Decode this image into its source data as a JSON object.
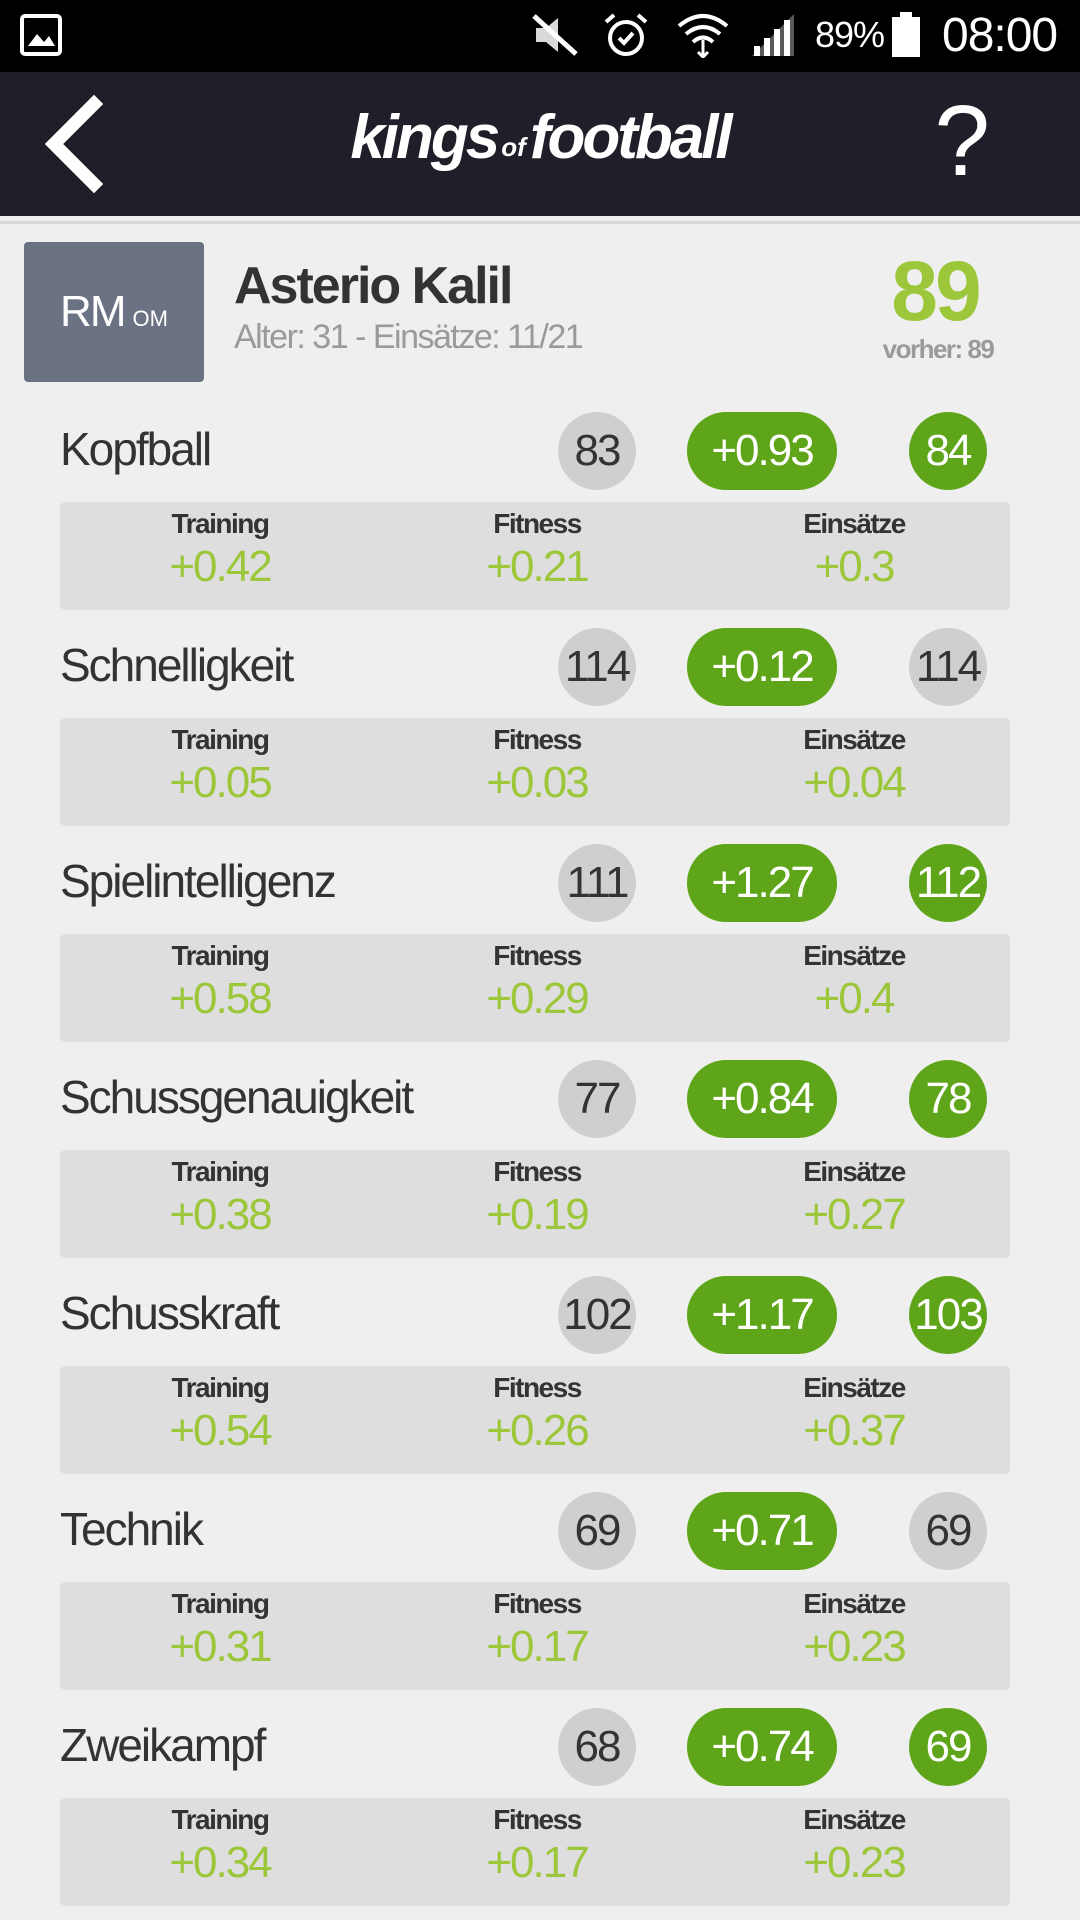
{
  "status_bar": {
    "battery_percent": "89%",
    "time": "08:00",
    "icons": [
      "gallery-icon",
      "mute-icon",
      "alarm-icon",
      "wifi-icon",
      "signal-icon",
      "battery-icon"
    ]
  },
  "app_bar": {
    "logo_part1": "kings",
    "logo_part2": "of",
    "logo_part3": "football",
    "help_label": "?"
  },
  "player": {
    "position": "RM",
    "position_secondary": "OM",
    "name": "Asterio Kalil",
    "meta": "Alter: 31 - Einsätze: 11/21",
    "rating": "89",
    "previous_rating": "vorher: 89"
  },
  "breakdown_labels": {
    "training": "Training",
    "fitness": "Fitness",
    "einsaetze": "Einsätze"
  },
  "stats": [
    {
      "label": "Kopfball",
      "old": "83",
      "delta": "+0.93",
      "new": "84",
      "changed": true,
      "training": "+0.42",
      "fitness": "+0.21",
      "einsaetze": "+0.3"
    },
    {
      "label": "Schnelligkeit",
      "old": "114",
      "delta": "+0.12",
      "new": "114",
      "changed": false,
      "training": "+0.05",
      "fitness": "+0.03",
      "einsaetze": "+0.04"
    },
    {
      "label": "Spielintelligenz",
      "old": "111",
      "delta": "+1.27",
      "new": "112",
      "changed": true,
      "training": "+0.58",
      "fitness": "+0.29",
      "einsaetze": "+0.4"
    },
    {
      "label": "Schussgenauigkeit",
      "old": "77",
      "delta": "+0.84",
      "new": "78",
      "changed": true,
      "training": "+0.38",
      "fitness": "+0.19",
      "einsaetze": "+0.27"
    },
    {
      "label": "Schusskraft",
      "old": "102",
      "delta": "+1.17",
      "new": "103",
      "changed": true,
      "training": "+0.54",
      "fitness": "+0.26",
      "einsaetze": "+0.37"
    },
    {
      "label": "Technik",
      "old": "69",
      "delta": "+0.71",
      "new": "69",
      "changed": false,
      "training": "+0.31",
      "fitness": "+0.17",
      "einsaetze": "+0.23"
    },
    {
      "label": "Zweikampf",
      "old": "68",
      "delta": "+0.74",
      "new": "69",
      "changed": true,
      "training": "+0.34",
      "fitness": "+0.17",
      "einsaetze": "+0.23"
    }
  ]
}
